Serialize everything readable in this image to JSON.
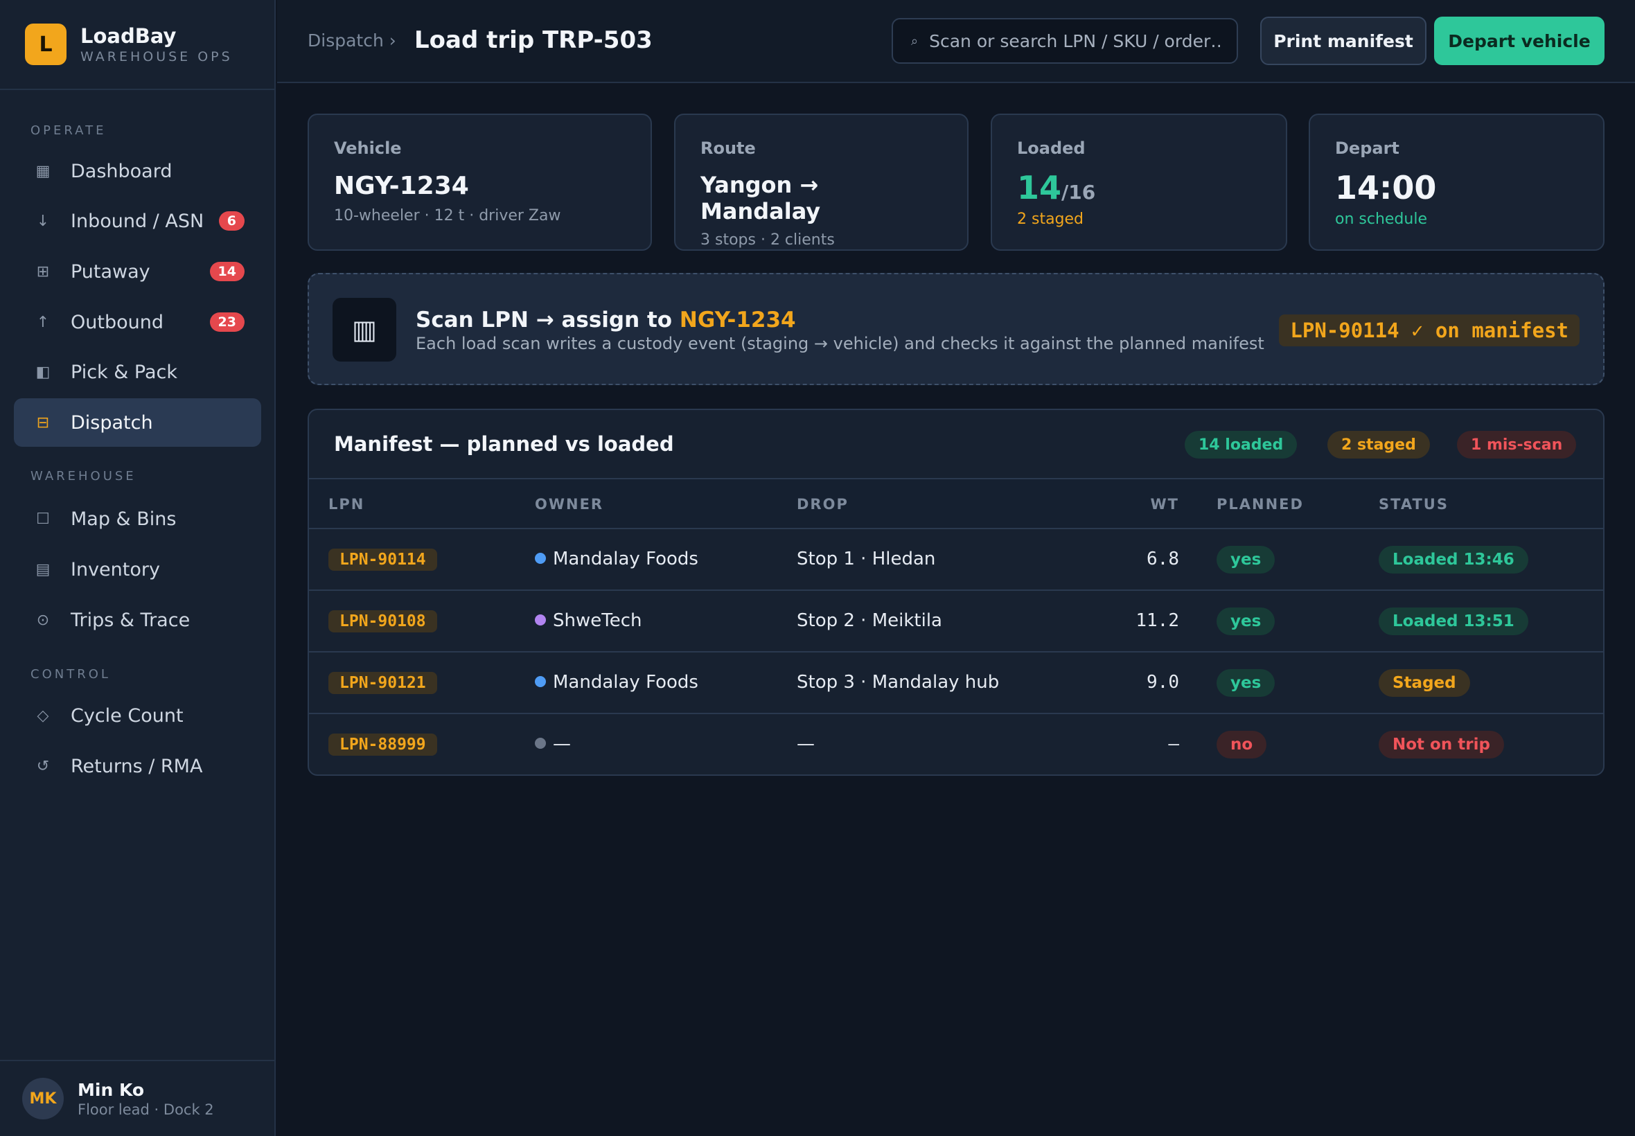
{
  "brand": {
    "logo_letter": "L",
    "name": "LoadBay",
    "sub": "WAREHOUSE OPS"
  },
  "sidebar": {
    "sections": [
      "OPERATE",
      "WAREHOUSE",
      "CONTROL"
    ],
    "items": [
      {
        "label": "Dashboard",
        "icon": "grid-icon",
        "glyph": "▦"
      },
      {
        "label": "Inbound / ASN",
        "icon": "arrow-down-icon",
        "glyph": "↓",
        "badge": "6"
      },
      {
        "label": "Putaway",
        "icon": "shelves-icon",
        "glyph": "⊞",
        "badge": "14"
      },
      {
        "label": "Outbound",
        "icon": "arrow-up-icon",
        "glyph": "↑",
        "badge": "23"
      },
      {
        "label": "Pick & Pack",
        "icon": "box-icon",
        "glyph": "◧"
      },
      {
        "label": "Dispatch",
        "icon": "truck-icon",
        "glyph": "⊟",
        "active": true
      },
      {
        "label": "Map & Bins",
        "icon": "map-icon",
        "glyph": "☐"
      },
      {
        "label": "Inventory",
        "icon": "inventory-icon",
        "glyph": "▤"
      },
      {
        "label": "Trips & Trace",
        "icon": "target-icon",
        "glyph": "⊙"
      },
      {
        "label": "Cycle Count",
        "icon": "diamond-icon",
        "glyph": "◇"
      },
      {
        "label": "Returns / RMA",
        "icon": "return-icon",
        "glyph": "↺"
      }
    ]
  },
  "user": {
    "initials": "MK",
    "name": "Min Ko",
    "role": "Floor lead · Dock 2"
  },
  "header": {
    "breadcrumb": "Dispatch ›",
    "title": "Load trip TRP-503",
    "search_placeholder": "Scan or search LPN / SKU / order…",
    "print_label": "Print manifest",
    "depart_label": "Depart vehicle"
  },
  "cards": {
    "vehicle": {
      "label": "Vehicle",
      "value": "NGY-1234",
      "sub": "10-wheeler · 12 t · driver Zaw"
    },
    "route": {
      "label": "Route",
      "value": "Yangon → Mandalay",
      "sub": "3 stops · 2 clients"
    },
    "loaded": {
      "label": "Loaded",
      "value": "14",
      "total": "/16",
      "sub": "2 staged"
    },
    "depart": {
      "label": "Depart",
      "value": "14:00",
      "sub": "on schedule"
    }
  },
  "scan": {
    "icon_glyph": "▥",
    "title_prefix": "Scan LPN → assign to ",
    "title_vehicle": "NGY-1234",
    "description": "Each load scan writes a custody event (staging → vehicle) and checks it against the planned manifest",
    "result": "LPN-90114 ✓ on manifest"
  },
  "manifest": {
    "title": "Manifest — planned vs loaded",
    "pills": {
      "loaded": "14 loaded",
      "staged": "2 staged",
      "misscan": "1 mis-scan"
    },
    "columns": [
      "LPN",
      "OWNER",
      "DROP",
      "WT",
      "PLANNED",
      "STATUS"
    ],
    "rows": [
      {
        "lpn": "LPN-90114",
        "owner": "Mandalay Foods",
        "dot": "#4f9cf5",
        "drop": "Stop 1 · Hledan",
        "wt": "6.8",
        "planned": "yes",
        "status": "Loaded 13:46",
        "status_kind": "loaded"
      },
      {
        "lpn": "LPN-90108",
        "owner": "ShweTech",
        "dot": "#b184f0",
        "drop": "Stop 2 · Meiktila",
        "wt": "11.2",
        "planned": "yes",
        "status": "Loaded 13:51",
        "status_kind": "loaded"
      },
      {
        "lpn": "LPN-90121",
        "owner": "Mandalay Foods",
        "dot": "#4f9cf5",
        "drop": "Stop 3 · Mandalay hub",
        "wt": "9.0",
        "planned": "yes",
        "status": "Staged",
        "status_kind": "staged"
      },
      {
        "lpn": "LPN-88999",
        "owner": "—",
        "dot": "#6b7688",
        "drop": "—",
        "wt": "—",
        "planned": "no",
        "status": "Not on trip",
        "status_kind": "noton"
      }
    ]
  },
  "colors": {
    "accent": "#f2a61c",
    "success": "#2ec79a",
    "danger": "#e5484d",
    "background": "#0f1622"
  }
}
